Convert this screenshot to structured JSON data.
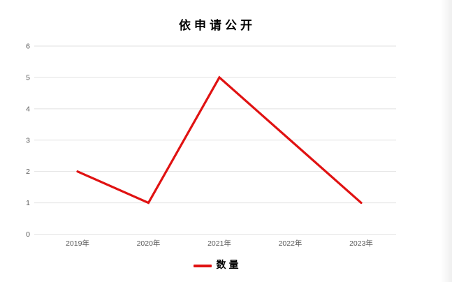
{
  "chart_data": {
    "type": "line",
    "title": "依申请公开",
    "categories": [
      "2019年",
      "2020年",
      "2021年",
      "2022年",
      "2023年"
    ],
    "series": [
      {
        "name": "数量",
        "values": [
          2,
          1,
          5,
          3,
          1
        ],
        "color": "#e01212"
      }
    ],
    "xlabel": "",
    "ylabel": "",
    "ylim": [
      0,
      6
    ],
    "y_ticks": [
      0,
      1,
      2,
      3,
      4,
      5,
      6
    ],
    "grid": true,
    "legend_position": "bottom",
    "colors": {
      "line": "#e01212",
      "gridline": "#e2e2e2",
      "tick_text": "#595959",
      "title_text": "#000000",
      "background": "#ffffff"
    }
  }
}
